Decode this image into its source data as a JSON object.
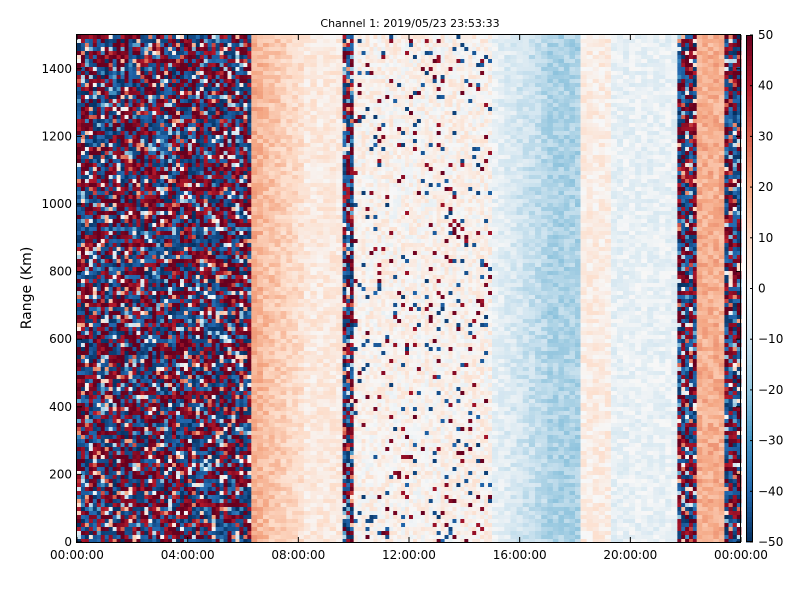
{
  "chart_data": {
    "type": "heatmap",
    "title": "Channel 1: 2019/05/23 23:53:33",
    "xlabel": "",
    "ylabel": "Range (Km)",
    "x_tick_labels": [
      "00:00:00",
      "04:00:00",
      "08:00:00",
      "12:00:00",
      "16:00:00",
      "20:00:00",
      "00:00:00"
    ],
    "x_tick_hours": [
      0,
      4,
      8,
      12,
      16,
      20,
      24
    ],
    "xlim_hours": [
      0,
      24
    ],
    "ylim": [
      0,
      1500
    ],
    "y_ticks": [
      0,
      200,
      400,
      600,
      800,
      1000,
      1200,
      1400
    ],
    "colorbar": {
      "colormap": "RdBu_r",
      "range": [
        -50,
        50
      ],
      "ticks": [
        -50,
        -40,
        -30,
        -20,
        -10,
        0,
        10,
        20,
        30,
        40,
        50
      ]
    },
    "grid": false,
    "time_regions": [
      {
        "start_hour": 0.0,
        "end_hour": 6.3,
        "pattern": "noise",
        "mean": 0
      },
      {
        "start_hour": 6.3,
        "end_hour": 8.2,
        "pattern": "smooth",
        "mean_start": 18,
        "mean_end": 8
      },
      {
        "start_hour": 8.2,
        "end_hour": 9.6,
        "pattern": "smooth",
        "mean": 5
      },
      {
        "start_hour": 9.6,
        "end_hour": 10.0,
        "pattern": "noise",
        "mean": 0
      },
      {
        "start_hour": 10.0,
        "end_hour": 15.0,
        "pattern": "sparse_noise",
        "mean": 2
      },
      {
        "start_hour": 15.0,
        "end_hour": 17.0,
        "pattern": "smooth",
        "mean_start": -4,
        "mean_end": -14
      },
      {
        "start_hour": 17.0,
        "end_hour": 18.2,
        "pattern": "smooth",
        "mean": -16
      },
      {
        "start_hour": 18.2,
        "end_hour": 19.3,
        "pattern": "smooth",
        "mean": 4
      },
      {
        "start_hour": 19.3,
        "end_hour": 21.7,
        "pattern": "smooth",
        "mean": -4
      },
      {
        "start_hour": 21.7,
        "end_hour": 22.4,
        "pattern": "noise",
        "mean": 0
      },
      {
        "start_hour": 22.4,
        "end_hour": 23.4,
        "pattern": "smooth",
        "mean": 18
      },
      {
        "start_hour": 23.4,
        "end_hour": 24.0,
        "pattern": "noise",
        "mean": 0
      }
    ]
  }
}
